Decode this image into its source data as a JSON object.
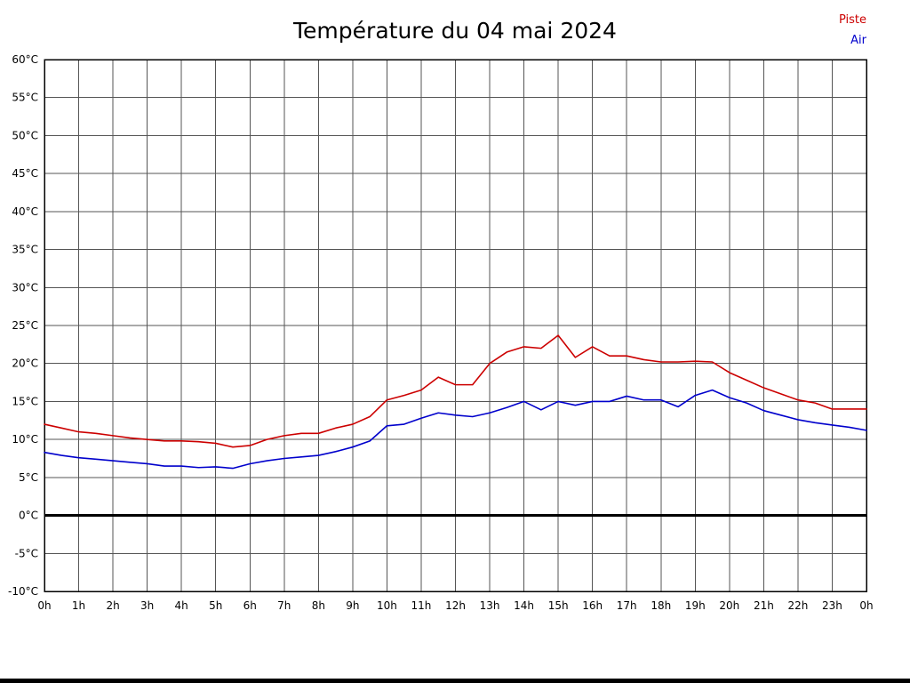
{
  "page": {
    "title": "Température du 04 mai 2024"
  },
  "legend": [
    {
      "label": "Piste",
      "color": "#cc0000"
    },
    {
      "label": "Air",
      "color": "#0000cc"
    }
  ],
  "chart_data": {
    "type": "line",
    "title": "Température du 04 mai 2024",
    "xlabel": "",
    "ylabel": "",
    "xlim": [
      0,
      24
    ],
    "ylim": [
      -10,
      60
    ],
    "y_tick_step": 5,
    "grid": true,
    "zero_line": true,
    "legend_position": "top-right",
    "x_tick_labels": [
      "0h",
      "1h",
      "2h",
      "3h",
      "4h",
      "5h",
      "6h",
      "7h",
      "8h",
      "9h",
      "10h",
      "11h",
      "12h",
      "13h",
      "14h",
      "15h",
      "16h",
      "17h",
      "18h",
      "19h",
      "20h",
      "21h",
      "22h",
      "23h",
      "0h"
    ],
    "y_tick_labels": [
      "60°C",
      "55°C",
      "50°C",
      "45°C",
      "40°C",
      "35°C",
      "30°C",
      "25°C",
      "20°C",
      "15°C",
      "10°C",
      "5°C",
      "0°C",
      "-5°C",
      "-10°C"
    ],
    "series": [
      {
        "name": "Piste",
        "color": "#cc0000",
        "x": [
          0,
          0.5,
          1,
          1.5,
          2,
          2.5,
          3,
          3.5,
          4,
          4.5,
          5,
          5.5,
          6,
          6.5,
          7,
          7.5,
          8,
          8.5,
          9,
          9.5,
          10,
          10.5,
          11,
          11.5,
          12,
          12.5,
          13,
          13.5,
          14,
          14.5,
          15,
          15.5,
          16,
          16.5,
          17,
          17.5,
          18,
          18.5,
          19,
          19.5,
          20,
          20.5,
          21,
          21.5,
          22,
          22.5,
          23,
          23.5,
          24
        ],
        "values": [
          12,
          11.5,
          11,
          10.8,
          10.5,
          10.2,
          10,
          9.8,
          9.8,
          9.7,
          9.5,
          9,
          9.2,
          10,
          10.5,
          10.8,
          10.8,
          11.5,
          12,
          13,
          15.2,
          15.8,
          16.5,
          18.2,
          17.2,
          17.2,
          20,
          21.5,
          22.2,
          22,
          23.7,
          20.8,
          22.2,
          21,
          21,
          20.5,
          20.2,
          20.2,
          20.3,
          20.2,
          18.8,
          17.8,
          16.8,
          16,
          15.2,
          14.8,
          14,
          14,
          14
        ]
      },
      {
        "name": "Air",
        "color": "#0000cc",
        "x": [
          0,
          0.5,
          1,
          1.5,
          2,
          2.5,
          3,
          3.5,
          4,
          4.5,
          5,
          5.5,
          6,
          6.5,
          7,
          7.5,
          8,
          8.5,
          9,
          9.5,
          10,
          10.5,
          11,
          11.5,
          12,
          12.5,
          13,
          13.5,
          14,
          14.5,
          15,
          15.5,
          16,
          16.5,
          17,
          17.5,
          18,
          18.5,
          19,
          19.5,
          20,
          20.5,
          21,
          21.5,
          22,
          22.5,
          23,
          23.5,
          24
        ],
        "values": [
          8.3,
          7.9,
          7.6,
          7.4,
          7.2,
          7.0,
          6.8,
          6.5,
          6.5,
          6.3,
          6.4,
          6.2,
          6.8,
          7.2,
          7.5,
          7.7,
          7.9,
          8.4,
          9.0,
          9.8,
          11.8,
          12.0,
          12.8,
          13.5,
          13.2,
          13.0,
          13.5,
          14.2,
          15.0,
          13.9,
          15.0,
          14.5,
          15.0,
          15.0,
          15.7,
          15.2,
          15.2,
          14.3,
          15.8,
          16.5,
          15.5,
          14.8,
          13.8,
          13.2,
          12.6,
          12.2,
          11.9,
          11.6,
          11.2
        ]
      }
    ]
  }
}
